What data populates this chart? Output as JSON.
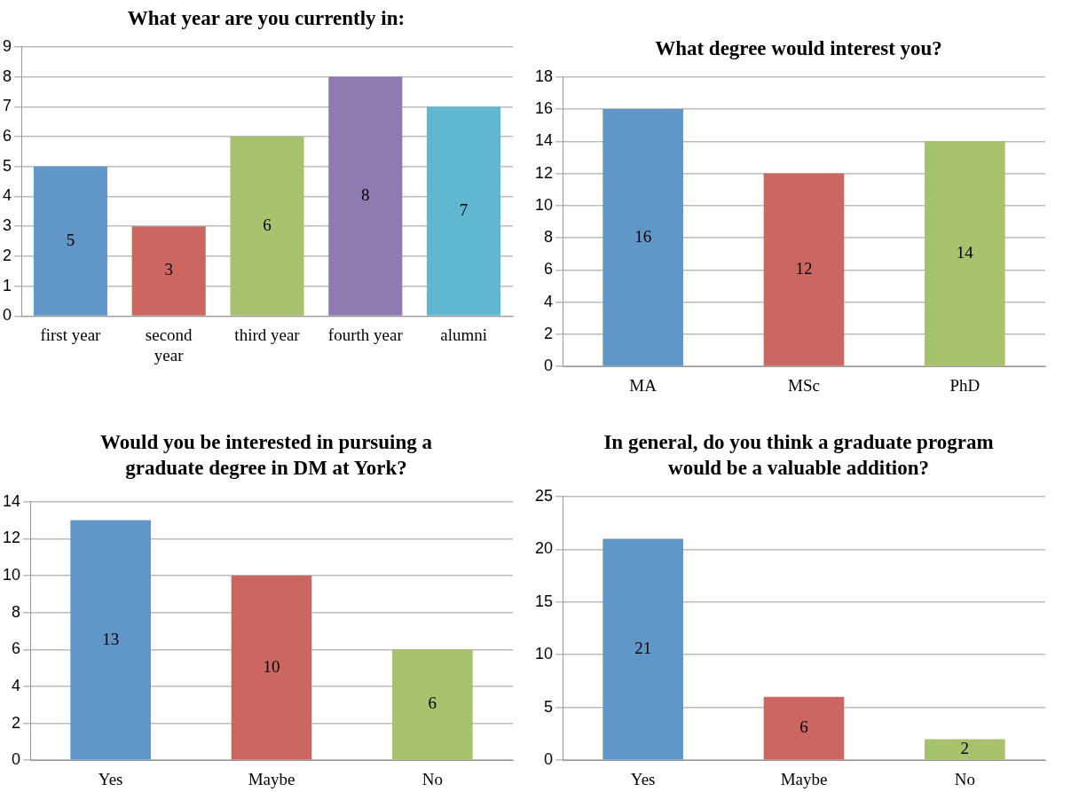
{
  "chart_data": [
    {
      "type": "bar",
      "title": "What year are you currently in:",
      "categories": [
        "first year",
        "second year",
        "third year",
        "fourth year",
        "alumni"
      ],
      "values": [
        5,
        3,
        6,
        8,
        7
      ],
      "colors": [
        "#6096c8",
        "#cc6660",
        "#a8c16c",
        "#8f7bb0",
        "#5fb8cf"
      ],
      "ylim": [
        0,
        9
      ],
      "yticks": [
        0,
        1,
        2,
        3,
        4,
        5,
        6,
        7,
        8,
        9
      ],
      "grid": "y",
      "data_labels": true
    },
    {
      "type": "bar",
      "title": "What degree would interest you?",
      "categories": [
        "MA",
        "MSc",
        "PhD"
      ],
      "values": [
        16,
        12,
        14
      ],
      "colors": [
        "#6096c8",
        "#cc6660",
        "#a8c16c"
      ],
      "ylim": [
        0,
        18
      ],
      "yticks": [
        0,
        2,
        4,
        6,
        8,
        10,
        12,
        14,
        16,
        18
      ],
      "grid": "y",
      "data_labels": true
    },
    {
      "type": "bar",
      "title": "Would you be interested in pursuing a graduate degree in DM at York?",
      "categories": [
        "Yes",
        "Maybe",
        "No"
      ],
      "values": [
        13,
        10,
        6
      ],
      "colors": [
        "#6096c8",
        "#cc6660",
        "#a8c16c"
      ],
      "ylim": [
        0,
        14
      ],
      "yticks": [
        0,
        2,
        4,
        6,
        8,
        10,
        12,
        14
      ],
      "grid": "y",
      "data_labels": true
    },
    {
      "type": "bar",
      "title": "In general, do you think a graduate program would be a valuable addition?",
      "categories": [
        "Yes",
        "Maybe",
        "No"
      ],
      "values": [
        21,
        6,
        2
      ],
      "colors": [
        "#6096c8",
        "#cc6660",
        "#a8c16c"
      ],
      "ylim": [
        0,
        25
      ],
      "yticks": [
        0,
        5,
        10,
        15,
        20,
        25
      ],
      "grid": "y",
      "data_labels": true
    }
  ]
}
